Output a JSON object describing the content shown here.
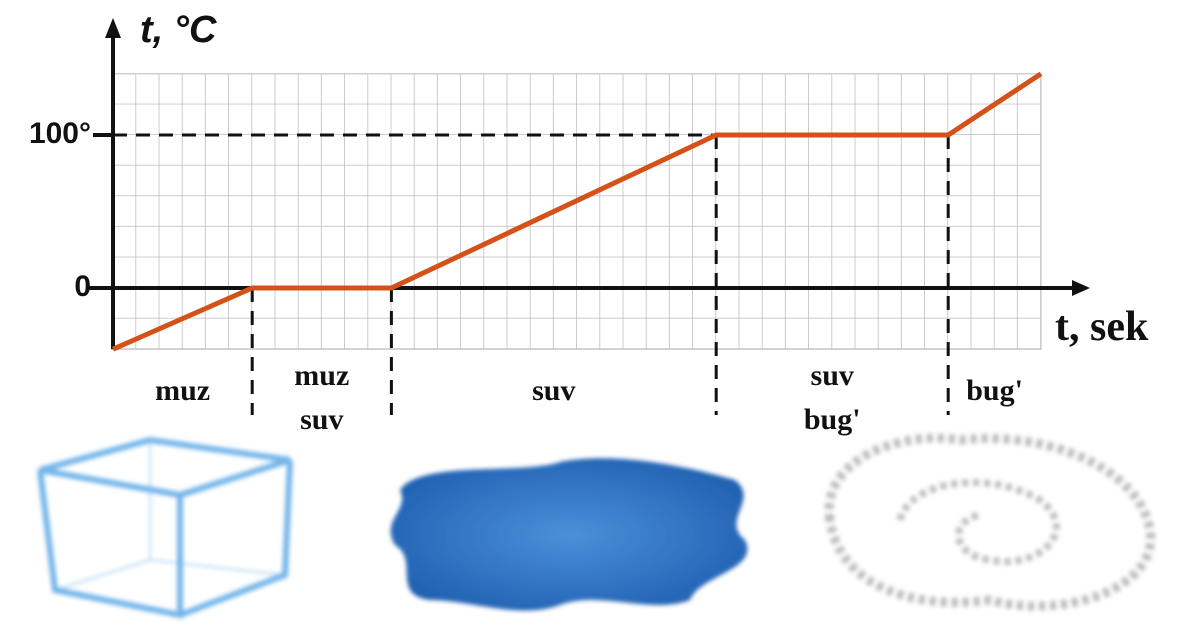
{
  "chart_data": {
    "type": "line",
    "y_label": "t, °C",
    "x_label": "t, sek",
    "x": [
      0,
      6,
      12,
      26,
      36,
      40
    ],
    "series": [
      {
        "name": "t",
        "color": "#d4521a",
        "values": [
          -40,
          0,
          0,
          100,
          100,
          140
        ]
      }
    ],
    "xlim": [
      0,
      40
    ],
    "ylim": [
      -40,
      140
    ],
    "yticks": [
      0,
      {
        "value": 100,
        "label": "100°"
      }
    ],
    "grid": true,
    "phases": [
      [
        "muz"
      ],
      [
        "muz",
        "suv"
      ],
      [
        "suv"
      ],
      [
        "suv",
        "bug'"
      ],
      [
        "bug'"
      ]
    ]
  }
}
